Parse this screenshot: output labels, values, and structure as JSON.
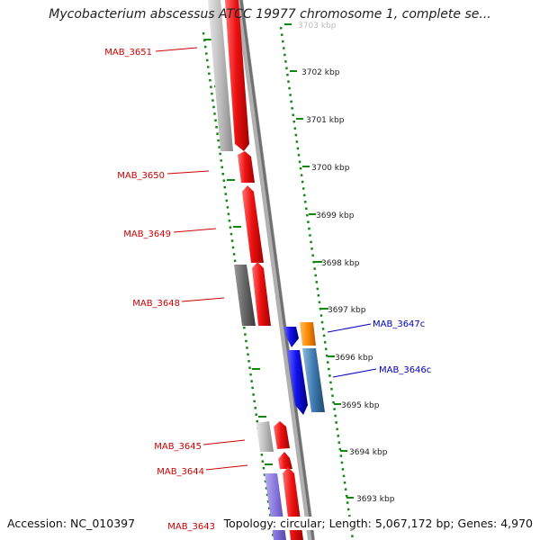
{
  "title": "Mycobacterium abscessus ATCC 19977 chromosome 1, complete se...",
  "footer": {
    "accession": "Accession: NC_010397",
    "stats": "Topology: circular; Length: 5,067,172 bp; Genes: 4,970"
  },
  "scale_labels": [
    "3703 kbp",
    "3702 kbp",
    "3701 kbp",
    "3700 kbp",
    "3699 kbp",
    "3698 kbp",
    "3697 kbp",
    "3696 kbp",
    "3695 kbp",
    "3694 kbp",
    "3693 kbp"
  ],
  "gene_labels": {
    "mab_3651": "MAB_3651",
    "mab_3650": "MAB_3650",
    "mab_3649": "MAB_3649",
    "mab_3648": "MAB_3648",
    "mab_3647c": "MAB_3647c",
    "mab_3646c": "MAB_3646c",
    "mab_3645": "MAB_3645",
    "mab_3644": "MAB_3644",
    "mab_3643": "MAB_3643"
  },
  "colors": {
    "forward_label": "#cc0000",
    "reverse_label": "#0000bb",
    "forward_gene": "#ee1111",
    "reverse_gene": "#1111ee",
    "orange_gene": "#ff8800",
    "steel_gene": "#3d7ab0",
    "light_gray_gene": "#bbbbbb",
    "dark_gray_gene": "#6a6a6a",
    "purple_gene": "#8877dd",
    "backbone": "#888888",
    "scale_ticks": "#118811"
  }
}
